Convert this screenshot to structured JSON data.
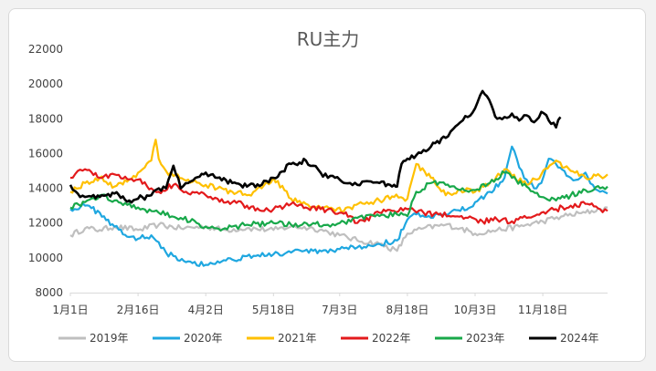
{
  "chart_data": {
    "type": "line",
    "title": "RU主力",
    "xlabel": "",
    "ylabel": "",
    "ylim": [
      8000,
      22000
    ],
    "yticks": [
      8000,
      10000,
      12000,
      14000,
      16000,
      18000,
      20000,
      22000
    ],
    "x_tick_labels": [
      "1月1日",
      "2月16日",
      "4月2日",
      "5月18日",
      "7月3日",
      "8月18日",
      "10月3日",
      "11月18日"
    ],
    "x_tick_days": [
      0,
      46,
      92,
      138,
      183,
      229,
      275,
      321
    ],
    "x_range_days": [
      0,
      365
    ],
    "grid": false,
    "legend_position": "bottom",
    "series": [
      {
        "name": "2019年",
        "color": "#bfbfbf",
        "x": [
          0,
          10,
          20,
          30,
          46,
          60,
          75,
          92,
          105,
          120,
          138,
          150,
          165,
          175,
          183,
          195,
          210,
          222,
          229,
          240,
          255,
          265,
          275,
          290,
          305,
          321,
          335,
          350,
          360,
          365
        ],
        "y": [
          11300,
          11700,
          11600,
          11800,
          11600,
          11900,
          11700,
          11800,
          11600,
          11700,
          11600,
          11800,
          11700,
          11500,
          11300,
          11000,
          10800,
          10400,
          11400,
          11700,
          11900,
          11700,
          11400,
          11600,
          11800,
          12100,
          12400,
          12600,
          12800,
          12900
        ]
      },
      {
        "name": "2020年",
        "color": "#1fa7e0",
        "x": [
          0,
          10,
          20,
          30,
          40,
          46,
          55,
          60,
          65,
          70,
          80,
          92,
          100,
          110,
          120,
          138,
          150,
          165,
          175,
          183,
          195,
          210,
          222,
          229,
          235,
          245,
          255,
          265,
          275,
          285,
          295,
          300,
          305,
          310,
          315,
          320,
          325,
          330,
          340,
          345,
          350,
          355,
          360,
          365
        ],
        "y": [
          12800,
          13000,
          12600,
          11800,
          11200,
          11100,
          11300,
          10900,
          10300,
          10100,
          9800,
          9600,
          9800,
          9900,
          10100,
          10200,
          10300,
          10400,
          10300,
          10500,
          10600,
          10800,
          11000,
          12200,
          12500,
          12300,
          12500,
          12700,
          13200,
          13800,
          14600,
          16400,
          15200,
          14500,
          14000,
          14300,
          15700,
          15400,
          14600,
          14500,
          14900,
          14200,
          13800,
          13700
        ]
      },
      {
        "name": "2021年",
        "color": "#ffc000",
        "x": [
          0,
          10,
          20,
          30,
          40,
          46,
          55,
          58,
          60,
          65,
          70,
          80,
          92,
          100,
          110,
          120,
          130,
          138,
          150,
          160,
          170,
          180,
          190,
          200,
          210,
          220,
          229,
          235,
          245,
          255,
          265,
          275,
          285,
          295,
          300,
          310,
          320,
          330,
          340,
          350,
          360,
          365
        ],
        "y": [
          13800,
          14300,
          14600,
          14100,
          14500,
          14900,
          15600,
          16800,
          15700,
          15000,
          14700,
          14500,
          14200,
          14000,
          13800,
          13600,
          14000,
          14600,
          13400,
          13100,
          12900,
          12700,
          12900,
          13100,
          13300,
          13500,
          13400,
          15400,
          14600,
          13600,
          13900,
          13800,
          14300,
          15100,
          14700,
          14200,
          14800,
          15600,
          15000,
          14600,
          14700,
          14800
        ]
      },
      {
        "name": "2022年",
        "color": "#e31a1c",
        "x": [
          0,
          5,
          10,
          20,
          30,
          46,
          55,
          60,
          70,
          80,
          92,
          100,
          110,
          120,
          130,
          138,
          150,
          160,
          170,
          183,
          190,
          195,
          200,
          210,
          220,
          229,
          240,
          250,
          260,
          270,
          280,
          290,
          300,
          310,
          320,
          330,
          340,
          350,
          360,
          365
        ],
        "y": [
          14600,
          15000,
          15100,
          14600,
          14800,
          14500,
          14000,
          13800,
          14200,
          13700,
          13600,
          13400,
          13200,
          13000,
          12700,
          12800,
          13100,
          12900,
          12800,
          12600,
          12400,
          12000,
          12100,
          12600,
          12700,
          12800,
          12600,
          12500,
          12400,
          12300,
          12100,
          12200,
          12100,
          12300,
          12600,
          12800,
          13000,
          13100,
          12800,
          12700
        ]
      },
      {
        "name": "2023年",
        "color": "#18a84a",
        "x": [
          0,
          10,
          20,
          30,
          46,
          60,
          75,
          92,
          105,
          120,
          138,
          150,
          165,
          175,
          183,
          195,
          210,
          222,
          229,
          235,
          245,
          255,
          265,
          275,
          285,
          295,
          300,
          310,
          320,
          330,
          340,
          350,
          360,
          365
        ],
        "y": [
          12900,
          13200,
          13600,
          13300,
          12900,
          12600,
          12300,
          11800,
          11700,
          11900,
          12000,
          11900,
          12000,
          11900,
          12000,
          12300,
          12400,
          12500,
          12400,
          13800,
          14300,
          14200,
          13900,
          13900,
          14300,
          14900,
          14600,
          14100,
          13500,
          13300,
          13600,
          13900,
          14000,
          14100
        ]
      },
      {
        "name": "2024年",
        "color": "#000000",
        "x": [
          0,
          5,
          10,
          20,
          30,
          40,
          46,
          55,
          60,
          65,
          70,
          75,
          80,
          85,
          92,
          100,
          110,
          120,
          130,
          138,
          150,
          160,
          165,
          170,
          175,
          183,
          190,
          195,
          200,
          210,
          220,
          222,
          225,
          229,
          235,
          240,
          245,
          255,
          260,
          265,
          270,
          275,
          280,
          283,
          286,
          290,
          295,
          300,
          305,
          310,
          315,
          320,
          325,
          330,
          333
        ],
        "y": [
          14200,
          13700,
          13500,
          13500,
          13700,
          13300,
          13400,
          13600,
          14000,
          14000,
          15300,
          14000,
          14300,
          14600,
          14900,
          14600,
          14300,
          14100,
          14200,
          14600,
          15400,
          15600,
          15300,
          14900,
          14600,
          14500,
          14300,
          14200,
          14400,
          14300,
          14200,
          14100,
          15400,
          15700,
          15900,
          16200,
          16400,
          16900,
          17400,
          17800,
          18100,
          18600,
          19600,
          19300,
          18800,
          18000,
          18100,
          18300,
          17900,
          18200,
          17800,
          18400,
          17900,
          17500,
          18100
        ]
      }
    ]
  }
}
